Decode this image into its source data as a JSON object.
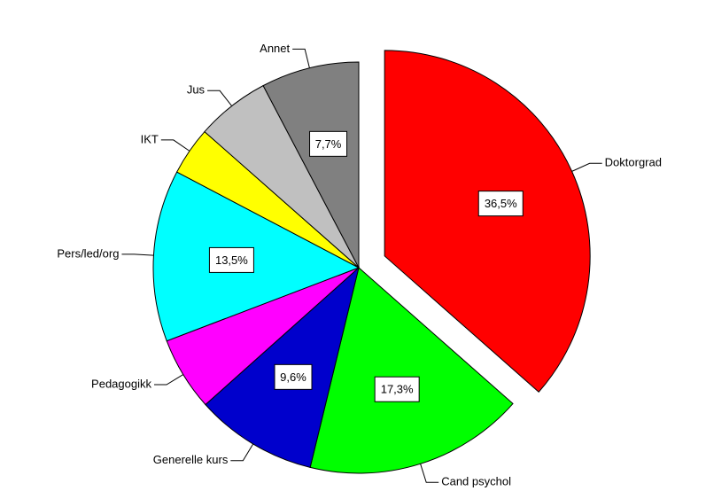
{
  "chart_data": {
    "type": "pie",
    "categories": [
      "Doktorgrad",
      "Cand psychol",
      "Generelle kurs",
      "Pedagogikk",
      "Pers/led/org",
      "IKT",
      "Jus",
      "Annet"
    ],
    "values": [
      36.5,
      17.3,
      9.6,
      5.8,
      13.5,
      3.8,
      5.8,
      7.7
    ],
    "value_labels": [
      "36,5%",
      "17,3%",
      "9,6%",
      null,
      "13,5%",
      null,
      null,
      "7,7%"
    ],
    "colors": [
      "#ff0000",
      "#00ff00",
      "#0000cc",
      "#ff00ff",
      "#00ffff",
      "#ffff00",
      "#c0c0c0",
      "#808080"
    ],
    "exploded": [
      true,
      false,
      false,
      false,
      false,
      false,
      false,
      false
    ]
  }
}
